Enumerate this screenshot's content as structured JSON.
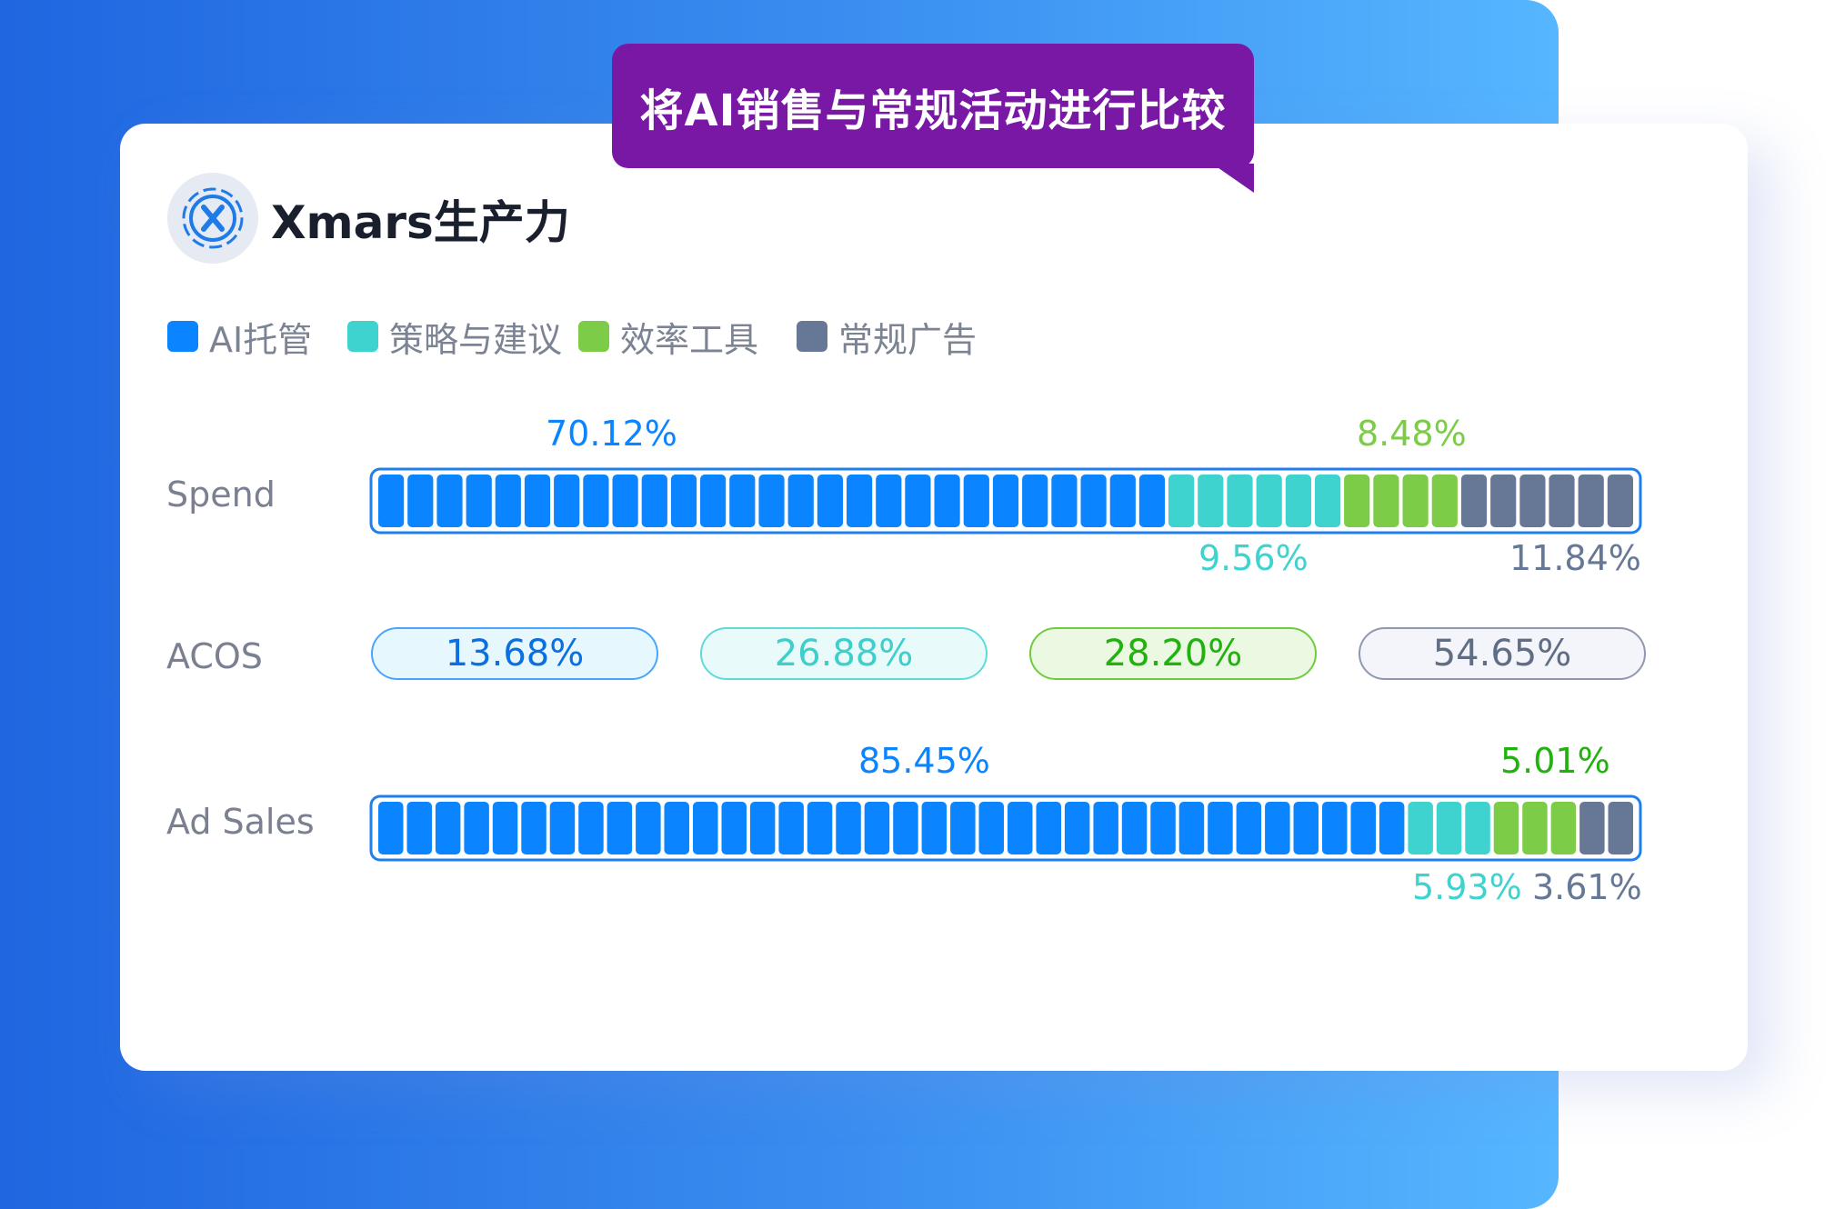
{
  "banner": {
    "title": "将AI销售与常规活动进行比较"
  },
  "card": {
    "brand": "Xmars生产力",
    "logo_icon": "x-logo-icon"
  },
  "colors": {
    "ai": "#0a84ff",
    "strategy": "#3fd3d0",
    "efficiency": "#7dcc48",
    "regular": "#667895"
  },
  "chart_data": {
    "type": "bar",
    "legend": [
      "AI托管",
      "策略与建议",
      "效率工具",
      "常规广告"
    ],
    "categories": [
      "Spend",
      "ACOS",
      "Ad Sales"
    ],
    "series": [
      {
        "name": "AI托管",
        "values": [
          70.12,
          13.68,
          85.45
        ]
      },
      {
        "name": "策略与建议",
        "values": [
          9.56,
          26.88,
          5.93
        ]
      },
      {
        "name": "效率工具",
        "values": [
          8.48,
          28.2,
          5.01
        ]
      },
      {
        "name": "常规广告",
        "values": [
          11.84,
          54.65,
          3.61
        ]
      }
    ],
    "labels": {
      "spend": [
        "70.12%",
        "9.56%",
        "8.48%",
        "11.84%"
      ],
      "acos": [
        "13.68%",
        "26.88%",
        "28.20%",
        "54.65%"
      ],
      "ad_sales": [
        "85.45%",
        "5.93%",
        "5.01%",
        "3.61%"
      ]
    },
    "segment_counts": {
      "spend": [
        27,
        6,
        4,
        6
      ],
      "ad_sales": [
        36,
        3,
        3,
        2
      ]
    }
  }
}
